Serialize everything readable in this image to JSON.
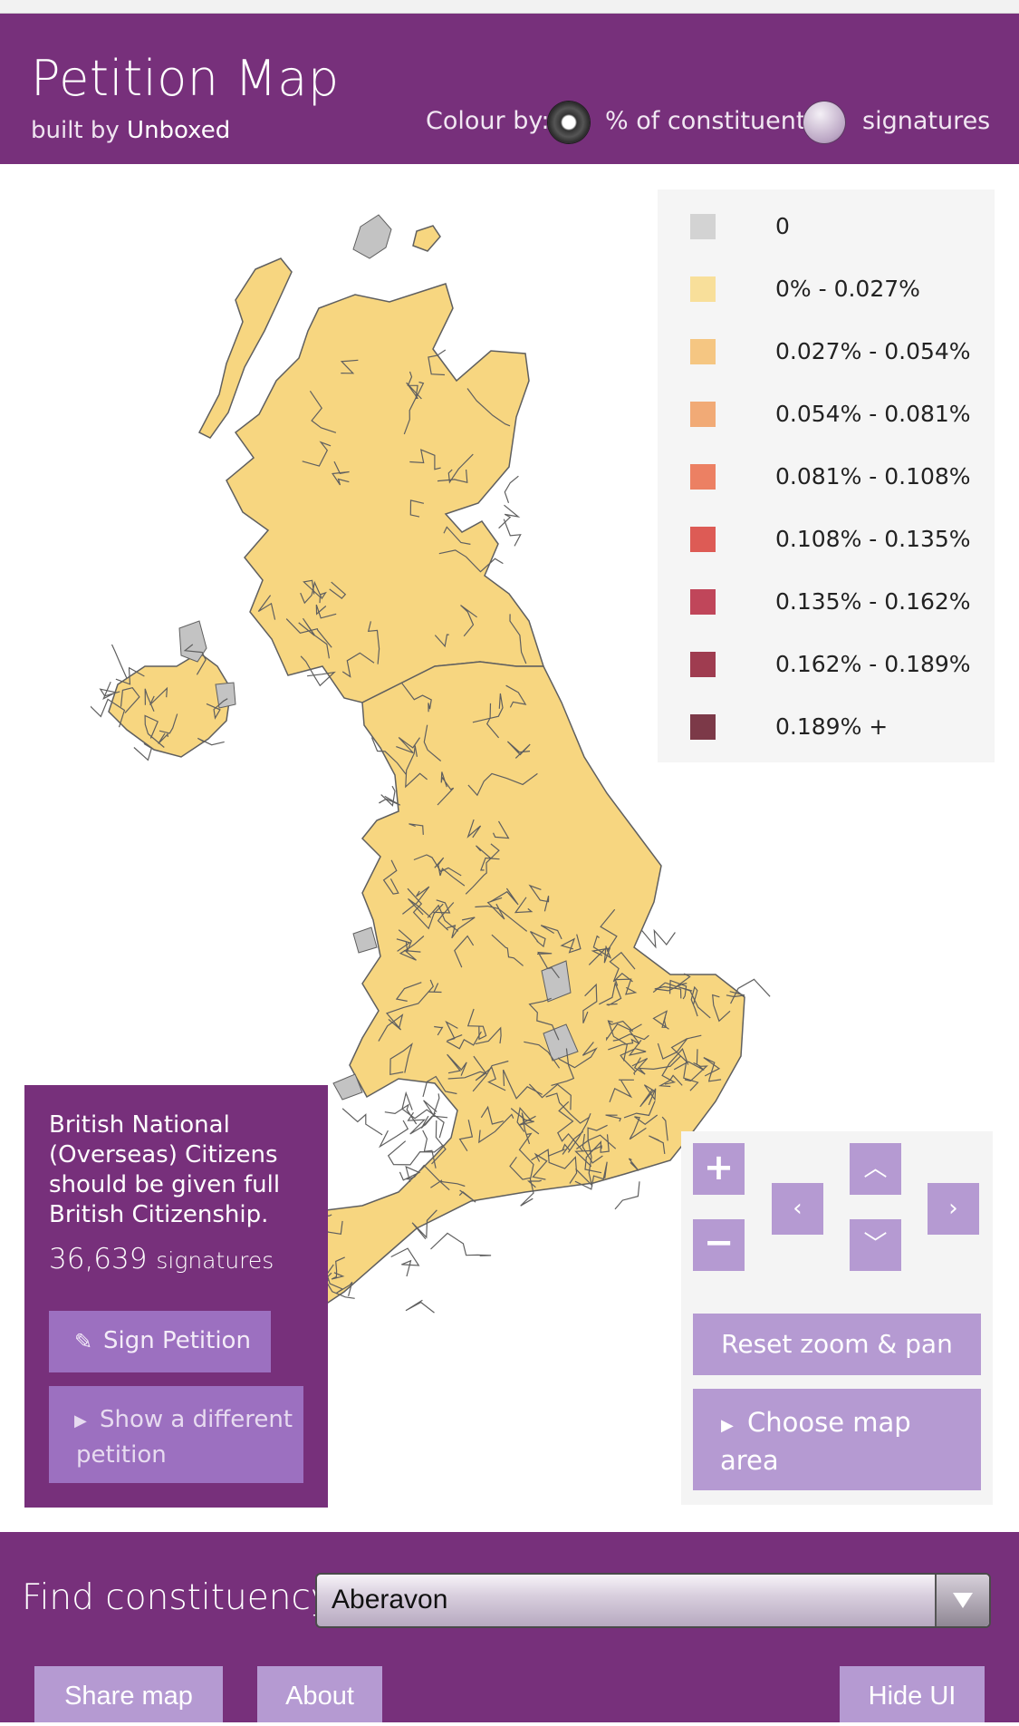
{
  "header": {
    "title": "Petition Map",
    "subtitle_prefix": "built by",
    "subtitle_brand": "Unboxed",
    "colour_by_label": "Colour by:",
    "options": [
      {
        "label": "% of constituents",
        "selected": true
      },
      {
        "label": "signatures",
        "selected": false
      }
    ]
  },
  "legend": {
    "items": [
      {
        "label": "0",
        "color": "#d3d3d3"
      },
      {
        "label": "0% - 0.027%",
        "color": "#f8df9a"
      },
      {
        "label": "0.027% - 0.054%",
        "color": "#f5c682"
      },
      {
        "label": "0.054% - 0.081%",
        "color": "#f1aa76"
      },
      {
        "label": "0.081% - 0.108%",
        "color": "#ec8063"
      },
      {
        "label": "0.108% - 0.135%",
        "color": "#dd5b55"
      },
      {
        "label": "0.135% - 0.162%",
        "color": "#c0465a"
      },
      {
        "label": "0.162% - 0.189%",
        "color": "#9f3c50"
      },
      {
        "label": "0.189% +",
        "color": "#7c3948"
      }
    ]
  },
  "map": {
    "fill_color": "#f7d680",
    "border_color": "#5f5f5f",
    "no_data_color": "#c3c3c3"
  },
  "petition": {
    "title": "British National (Overseas) Citizens should be given full British Citizenship.",
    "count": "36,639",
    "count_suffix": "signatures",
    "sign_label": "Sign Petition",
    "sign_icon": "pencil-icon",
    "show_other_label": "Show a different petition",
    "show_other_icon": "triangle-right-icon"
  },
  "controls": {
    "zoom_in": "+",
    "zoom_out": "−",
    "up": "^",
    "down": "v",
    "left": "<",
    "right": ">",
    "reset_label": "Reset zoom & pan",
    "choose_label": "Choose map area",
    "choose_icon": "triangle-right-icon"
  },
  "footer": {
    "find_label": "Find constituency",
    "selected_constituency": "Aberavon",
    "share_label": "Share map",
    "about_label": "About",
    "hide_label": "Hide UI"
  },
  "colors": {
    "brand_purple": "#77307b",
    "button_lilac": "#b59ad2"
  }
}
